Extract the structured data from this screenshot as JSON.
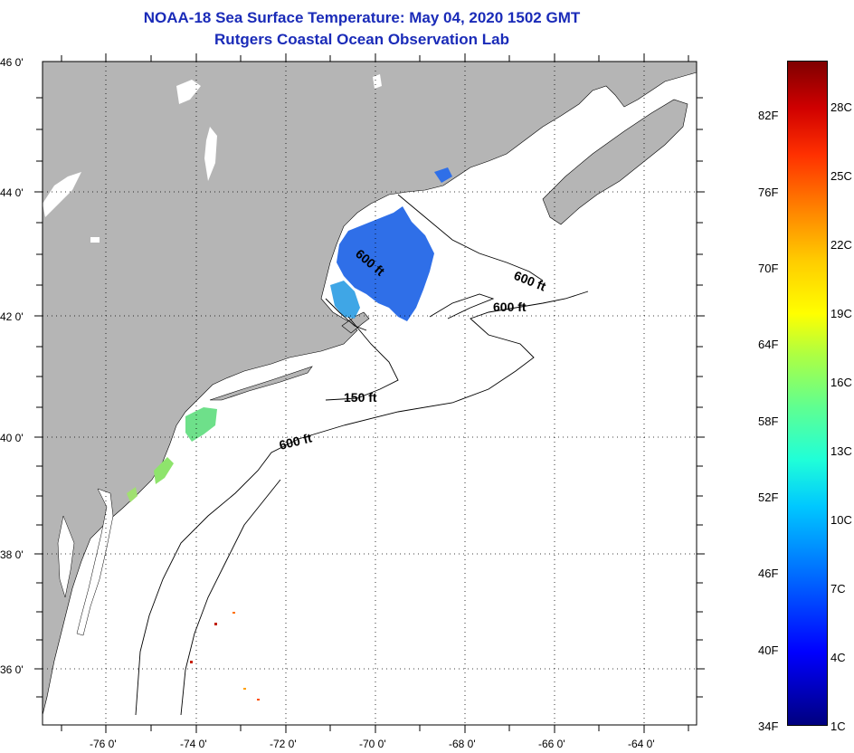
{
  "title_line1": "NOAA-18 Sea Surface Temperature:  May 04, 2020 1502 GMT",
  "title_line2": "Rutgers Coastal Ocean Observation Lab",
  "lat_labels": [
    "46 0'",
    "44 0'",
    "42 0'",
    "40 0'",
    "38 0'",
    "36 0'"
  ],
  "lon_labels": [
    "-76 0'",
    "-74 0'",
    "-72 0'",
    "-70 0'",
    "-68 0'",
    "-66 0'",
    "-64 0'"
  ],
  "contour_labels": {
    "gulf_maine": "600 ft",
    "east_a": "600 ft",
    "east_b": "600 ft",
    "shelf_150": "150 ft",
    "shelf_600": "600 ft"
  },
  "colorbar": {
    "fahrenheit": [
      "82F",
      "76F",
      "70F",
      "64F",
      "58F",
      "52F",
      "46F",
      "40F",
      "34F"
    ],
    "celsius": [
      "28C",
      "25C",
      "22C",
      "19C",
      "16C",
      "13C",
      "10C",
      "7C",
      "4C",
      "1C"
    ]
  },
  "colors": {
    "land": "#b5b5b5",
    "title": "#1a2bb8",
    "cold_sst": "#2f6fe8",
    "mid_sst": "#6ee08a"
  }
}
